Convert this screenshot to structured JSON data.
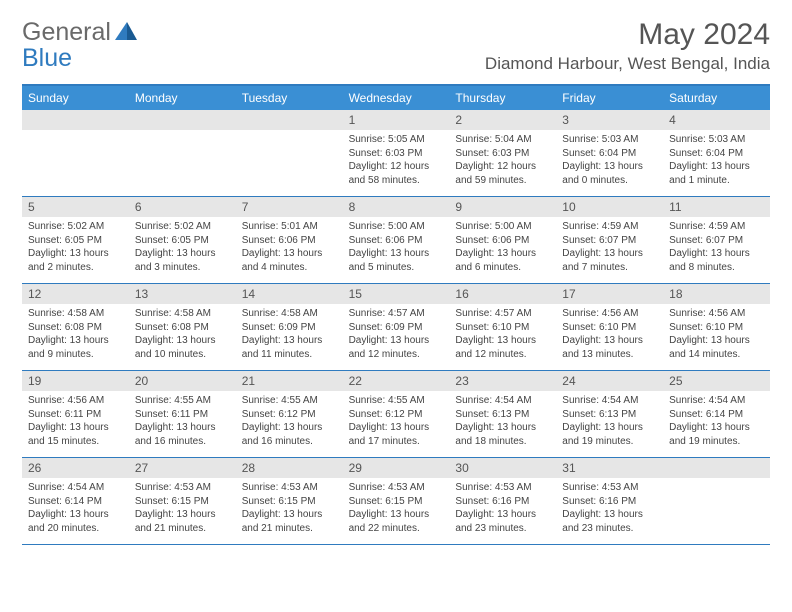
{
  "brand": {
    "word1": "General",
    "word2": "Blue"
  },
  "title": "May 2024",
  "location": "Diamond Harbour, West Bengal, India",
  "colors": {
    "header_bar": "#3a8fd4",
    "border": "#2f7bbf",
    "daynum_bg": "#e6e6e6",
    "text": "#444444",
    "title_text": "#555555",
    "logo_gray": "#6a6a6a",
    "logo_blue": "#2f7bbf",
    "background": "#ffffff"
  },
  "daysOfWeek": [
    "Sunday",
    "Monday",
    "Tuesday",
    "Wednesday",
    "Thursday",
    "Friday",
    "Saturday"
  ],
  "weeks": [
    [
      {
        "n": "",
        "lines": []
      },
      {
        "n": "",
        "lines": []
      },
      {
        "n": "",
        "lines": []
      },
      {
        "n": "1",
        "lines": [
          "Sunrise: 5:05 AM",
          "Sunset: 6:03 PM",
          "Daylight: 12 hours",
          "and 58 minutes."
        ]
      },
      {
        "n": "2",
        "lines": [
          "Sunrise: 5:04 AM",
          "Sunset: 6:03 PM",
          "Daylight: 12 hours",
          "and 59 minutes."
        ]
      },
      {
        "n": "3",
        "lines": [
          "Sunrise: 5:03 AM",
          "Sunset: 6:04 PM",
          "Daylight: 13 hours",
          "and 0 minutes."
        ]
      },
      {
        "n": "4",
        "lines": [
          "Sunrise: 5:03 AM",
          "Sunset: 6:04 PM",
          "Daylight: 13 hours",
          "and 1 minute."
        ]
      }
    ],
    [
      {
        "n": "5",
        "lines": [
          "Sunrise: 5:02 AM",
          "Sunset: 6:05 PM",
          "Daylight: 13 hours",
          "and 2 minutes."
        ]
      },
      {
        "n": "6",
        "lines": [
          "Sunrise: 5:02 AM",
          "Sunset: 6:05 PM",
          "Daylight: 13 hours",
          "and 3 minutes."
        ]
      },
      {
        "n": "7",
        "lines": [
          "Sunrise: 5:01 AM",
          "Sunset: 6:06 PM",
          "Daylight: 13 hours",
          "and 4 minutes."
        ]
      },
      {
        "n": "8",
        "lines": [
          "Sunrise: 5:00 AM",
          "Sunset: 6:06 PM",
          "Daylight: 13 hours",
          "and 5 minutes."
        ]
      },
      {
        "n": "9",
        "lines": [
          "Sunrise: 5:00 AM",
          "Sunset: 6:06 PM",
          "Daylight: 13 hours",
          "and 6 minutes."
        ]
      },
      {
        "n": "10",
        "lines": [
          "Sunrise: 4:59 AM",
          "Sunset: 6:07 PM",
          "Daylight: 13 hours",
          "and 7 minutes."
        ]
      },
      {
        "n": "11",
        "lines": [
          "Sunrise: 4:59 AM",
          "Sunset: 6:07 PM",
          "Daylight: 13 hours",
          "and 8 minutes."
        ]
      }
    ],
    [
      {
        "n": "12",
        "lines": [
          "Sunrise: 4:58 AM",
          "Sunset: 6:08 PM",
          "Daylight: 13 hours",
          "and 9 minutes."
        ]
      },
      {
        "n": "13",
        "lines": [
          "Sunrise: 4:58 AM",
          "Sunset: 6:08 PM",
          "Daylight: 13 hours",
          "and 10 minutes."
        ]
      },
      {
        "n": "14",
        "lines": [
          "Sunrise: 4:58 AM",
          "Sunset: 6:09 PM",
          "Daylight: 13 hours",
          "and 11 minutes."
        ]
      },
      {
        "n": "15",
        "lines": [
          "Sunrise: 4:57 AM",
          "Sunset: 6:09 PM",
          "Daylight: 13 hours",
          "and 12 minutes."
        ]
      },
      {
        "n": "16",
        "lines": [
          "Sunrise: 4:57 AM",
          "Sunset: 6:10 PM",
          "Daylight: 13 hours",
          "and 12 minutes."
        ]
      },
      {
        "n": "17",
        "lines": [
          "Sunrise: 4:56 AM",
          "Sunset: 6:10 PM",
          "Daylight: 13 hours",
          "and 13 minutes."
        ]
      },
      {
        "n": "18",
        "lines": [
          "Sunrise: 4:56 AM",
          "Sunset: 6:10 PM",
          "Daylight: 13 hours",
          "and 14 minutes."
        ]
      }
    ],
    [
      {
        "n": "19",
        "lines": [
          "Sunrise: 4:56 AM",
          "Sunset: 6:11 PM",
          "Daylight: 13 hours",
          "and 15 minutes."
        ]
      },
      {
        "n": "20",
        "lines": [
          "Sunrise: 4:55 AM",
          "Sunset: 6:11 PM",
          "Daylight: 13 hours",
          "and 16 minutes."
        ]
      },
      {
        "n": "21",
        "lines": [
          "Sunrise: 4:55 AM",
          "Sunset: 6:12 PM",
          "Daylight: 13 hours",
          "and 16 minutes."
        ]
      },
      {
        "n": "22",
        "lines": [
          "Sunrise: 4:55 AM",
          "Sunset: 6:12 PM",
          "Daylight: 13 hours",
          "and 17 minutes."
        ]
      },
      {
        "n": "23",
        "lines": [
          "Sunrise: 4:54 AM",
          "Sunset: 6:13 PM",
          "Daylight: 13 hours",
          "and 18 minutes."
        ]
      },
      {
        "n": "24",
        "lines": [
          "Sunrise: 4:54 AM",
          "Sunset: 6:13 PM",
          "Daylight: 13 hours",
          "and 19 minutes."
        ]
      },
      {
        "n": "25",
        "lines": [
          "Sunrise: 4:54 AM",
          "Sunset: 6:14 PM",
          "Daylight: 13 hours",
          "and 19 minutes."
        ]
      }
    ],
    [
      {
        "n": "26",
        "lines": [
          "Sunrise: 4:54 AM",
          "Sunset: 6:14 PM",
          "Daylight: 13 hours",
          "and 20 minutes."
        ]
      },
      {
        "n": "27",
        "lines": [
          "Sunrise: 4:53 AM",
          "Sunset: 6:15 PM",
          "Daylight: 13 hours",
          "and 21 minutes."
        ]
      },
      {
        "n": "28",
        "lines": [
          "Sunrise: 4:53 AM",
          "Sunset: 6:15 PM",
          "Daylight: 13 hours",
          "and 21 minutes."
        ]
      },
      {
        "n": "29",
        "lines": [
          "Sunrise: 4:53 AM",
          "Sunset: 6:15 PM",
          "Daylight: 13 hours",
          "and 22 minutes."
        ]
      },
      {
        "n": "30",
        "lines": [
          "Sunrise: 4:53 AM",
          "Sunset: 6:16 PM",
          "Daylight: 13 hours",
          "and 23 minutes."
        ]
      },
      {
        "n": "31",
        "lines": [
          "Sunrise: 4:53 AM",
          "Sunset: 6:16 PM",
          "Daylight: 13 hours",
          "and 23 minutes."
        ]
      },
      {
        "n": "",
        "lines": []
      }
    ]
  ]
}
